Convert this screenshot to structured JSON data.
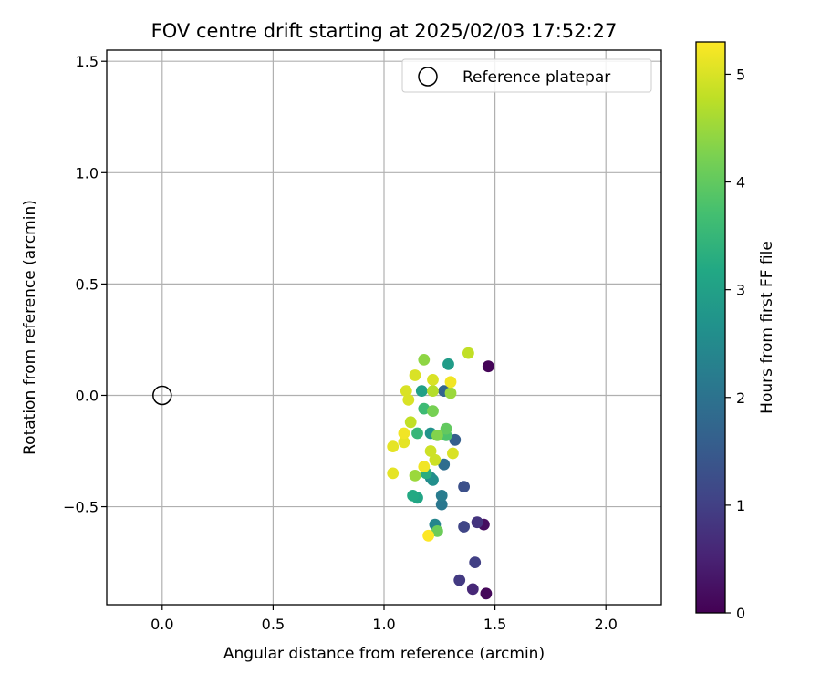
{
  "chart_data": {
    "type": "scatter",
    "title": "FOV centre drift starting at 2025/02/03 17:52:27",
    "xlabel": "Angular distance from reference (arcmin)",
    "ylabel": "Rotation from reference (arcmin)",
    "xlim": [
      -0.25,
      2.25
    ],
    "ylim": [
      -0.94,
      1.55
    ],
    "xticks": [
      0.0,
      0.5,
      1.0,
      1.5,
      2.0
    ],
    "xtick_labels": [
      "0.0",
      "0.5",
      "1.0",
      "1.5",
      "2.0"
    ],
    "yticks": [
      -0.5,
      0.0,
      0.5,
      1.0,
      1.5
    ],
    "ytick_labels": [
      "−0.5",
      "0.0",
      "0.5",
      "1.0",
      "1.5"
    ],
    "grid": true,
    "legend": {
      "position": "top-right",
      "entries": [
        {
          "label": "Reference platepar",
          "marker": "open-circle"
        }
      ]
    },
    "reference_point": {
      "x": 0.0,
      "y": 0.0
    },
    "colorbar": {
      "label": "Hours from first FF file",
      "colormap": "viridis",
      "range": [
        0,
        5.3
      ],
      "ticks": [
        0,
        1,
        2,
        3,
        4,
        5
      ],
      "tick_labels": [
        "0",
        "1",
        "2",
        "3",
        "4",
        "5"
      ]
    },
    "points": [
      {
        "x": 1.47,
        "y": 0.13,
        "c": 0.05
      },
      {
        "x": 1.46,
        "y": -0.89,
        "c": 0.1
      },
      {
        "x": 1.45,
        "y": -0.58,
        "c": 0.2
      },
      {
        "x": 1.4,
        "y": -0.87,
        "c": 0.6
      },
      {
        "x": 1.42,
        "y": -0.57,
        "c": 0.8
      },
      {
        "x": 1.34,
        "y": -0.83,
        "c": 0.9
      },
      {
        "x": 1.41,
        "y": -0.75,
        "c": 1.0
      },
      {
        "x": 1.36,
        "y": -0.59,
        "c": 1.1
      },
      {
        "x": 1.36,
        "y": -0.41,
        "c": 1.3
      },
      {
        "x": 1.32,
        "y": -0.2,
        "c": 1.6
      },
      {
        "x": 1.27,
        "y": 0.02,
        "c": 1.7
      },
      {
        "x": 1.27,
        "y": -0.31,
        "c": 1.9
      },
      {
        "x": 1.26,
        "y": -0.49,
        "c": 2.1
      },
      {
        "x": 1.26,
        "y": -0.45,
        "c": 2.2
      },
      {
        "x": 1.23,
        "y": -0.58,
        "c": 2.4
      },
      {
        "x": 1.21,
        "y": -0.37,
        "c": 2.5
      },
      {
        "x": 1.22,
        "y": -0.38,
        "c": 2.6
      },
      {
        "x": 1.21,
        "y": -0.17,
        "c": 2.7
      },
      {
        "x": 1.29,
        "y": 0.14,
        "c": 2.9
      },
      {
        "x": 1.17,
        "y": 0.02,
        "c": 3.0
      },
      {
        "x": 1.15,
        "y": -0.46,
        "c": 3.1
      },
      {
        "x": 1.13,
        "y": -0.45,
        "c": 3.2
      },
      {
        "x": 1.19,
        "y": -0.35,
        "c": 3.3
      },
      {
        "x": 1.15,
        "y": -0.17,
        "c": 3.5
      },
      {
        "x": 1.18,
        "y": -0.06,
        "c": 3.6
      },
      {
        "x": 1.28,
        "y": -0.18,
        "c": 3.8
      },
      {
        "x": 1.28,
        "y": -0.15,
        "c": 4.0
      },
      {
        "x": 1.24,
        "y": -0.61,
        "c": 4.1
      },
      {
        "x": 1.22,
        "y": -0.07,
        "c": 4.2
      },
      {
        "x": 1.24,
        "y": -0.18,
        "c": 4.3
      },
      {
        "x": 1.18,
        "y": 0.16,
        "c": 4.4
      },
      {
        "x": 1.14,
        "y": -0.36,
        "c": 4.5
      },
      {
        "x": 1.3,
        "y": 0.01,
        "c": 4.5
      },
      {
        "x": 1.22,
        "y": 0.02,
        "c": 4.7
      },
      {
        "x": 1.38,
        "y": 0.19,
        "c": 4.8
      },
      {
        "x": 1.12,
        "y": -0.12,
        "c": 4.8
      },
      {
        "x": 1.21,
        "y": -0.25,
        "c": 4.9
      },
      {
        "x": 1.23,
        "y": -0.29,
        "c": 4.9
      },
      {
        "x": 1.31,
        "y": -0.26,
        "c": 5.0
      },
      {
        "x": 1.14,
        "y": 0.09,
        "c": 5.0
      },
      {
        "x": 1.22,
        "y": 0.07,
        "c": 5.0
      },
      {
        "x": 1.1,
        "y": 0.02,
        "c": 5.0
      },
      {
        "x": 1.11,
        "y": -0.02,
        "c": 5.0
      },
      {
        "x": 1.04,
        "y": -0.35,
        "c": 5.1
      },
      {
        "x": 1.04,
        "y": -0.23,
        "c": 5.1
      },
      {
        "x": 1.09,
        "y": -0.21,
        "c": 5.1
      },
      {
        "x": 1.18,
        "y": -0.32,
        "c": 5.2
      },
      {
        "x": 1.3,
        "y": 0.06,
        "c": 5.2
      },
      {
        "x": 1.09,
        "y": -0.17,
        "c": 5.2
      },
      {
        "x": 1.2,
        "y": -0.63,
        "c": 5.3
      }
    ]
  }
}
